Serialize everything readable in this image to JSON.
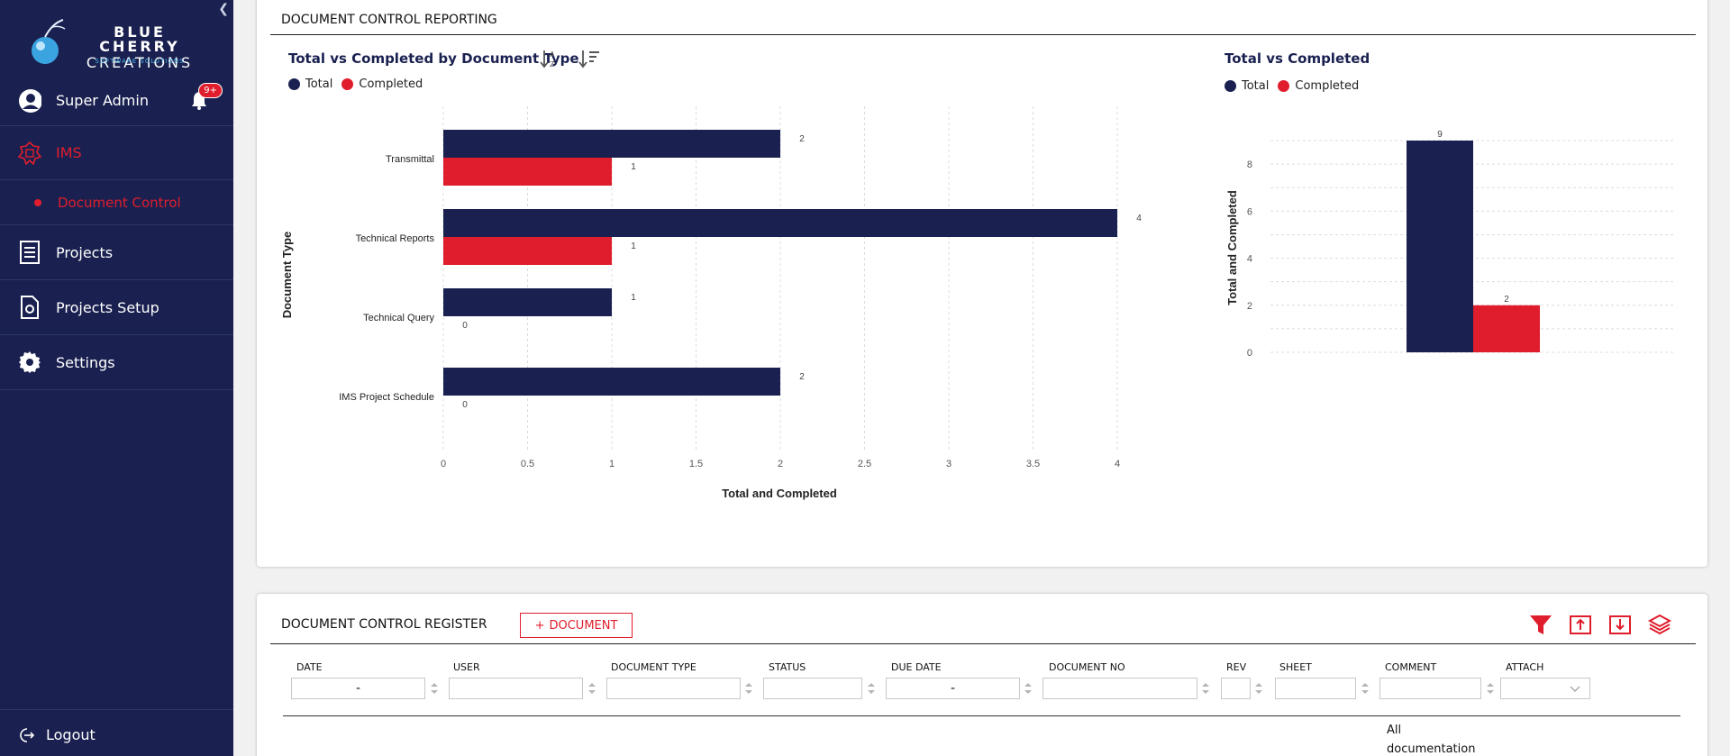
{
  "sidebar": {
    "logo_line1": "BLUE CHERRY",
    "logo_line2": "CREATIONS",
    "logo_line3": "SOFTWARE SOLUTIONS",
    "user_name": "Super Admin",
    "notification_badge": "9+",
    "items": [
      {
        "label": "IMS",
        "icon": "ims-icon"
      },
      {
        "label": "Document Control",
        "icon": "dot"
      },
      {
        "label": "Projects",
        "icon": "document-list-icon"
      },
      {
        "label": "Projects Setup",
        "icon": "file-gear-icon"
      },
      {
        "label": "Settings",
        "icon": "gear-icon"
      }
    ],
    "logout_label": "Logout"
  },
  "reporting": {
    "title": "DOCUMENT CONTROL REPORTING",
    "chart1_title": "Total vs Completed by Document Type",
    "chart2_title": "Total vs Completed",
    "legend_total": "Total",
    "legend_completed": "Completed"
  },
  "colors": {
    "total": "#1a2150",
    "completed": "#e01d2c",
    "accent": "#e01d2c"
  },
  "chart_data": [
    {
      "type": "bar",
      "orientation": "horizontal",
      "title": "Total vs Completed by Document Type",
      "xlabel": "Total and Completed",
      "ylabel": "Document Type",
      "categories": [
        "Transmittal",
        "Technical Reports",
        "Technical Query",
        "IMS Project Schedule"
      ],
      "series": [
        {
          "name": "Total",
          "values": [
            2,
            4,
            1,
            2
          ]
        },
        {
          "name": "Completed",
          "values": [
            1,
            1,
            0,
            0
          ]
        }
      ],
      "xlim": [
        0,
        4
      ],
      "xticks": [
        "0",
        "0.5",
        "1",
        "1.5",
        "2",
        "2.5",
        "3",
        "3.5",
        "4"
      ],
      "grid": "vertical dotted",
      "legend": "top-left"
    },
    {
      "type": "bar",
      "title": "Total vs Completed",
      "ylabel": "Total and Completed",
      "series": [
        {
          "name": "Total",
          "values": [
            9
          ]
        },
        {
          "name": "Completed",
          "values": [
            2
          ]
        }
      ],
      "ylim": [
        0,
        9
      ],
      "yticks": [
        "0",
        "2",
        "4",
        "6",
        "8"
      ],
      "grid": "horizontal dotted",
      "legend": "top-left"
    }
  ],
  "register": {
    "title": "DOCUMENT CONTROL REGISTER",
    "add_button": "DOCUMENT",
    "add_plus": "+",
    "columns": [
      "DATE",
      "USER",
      "DOCUMENT TYPE",
      "STATUS",
      "DUE DATE",
      "DOCUMENT NO",
      "REV",
      "SHEET",
      "COMMENT",
      "ATTACH"
    ],
    "date_filter": "-",
    "due_date_filter": "-",
    "first_row_comment_line1": "All",
    "first_row_comment_line2": "documentation"
  }
}
